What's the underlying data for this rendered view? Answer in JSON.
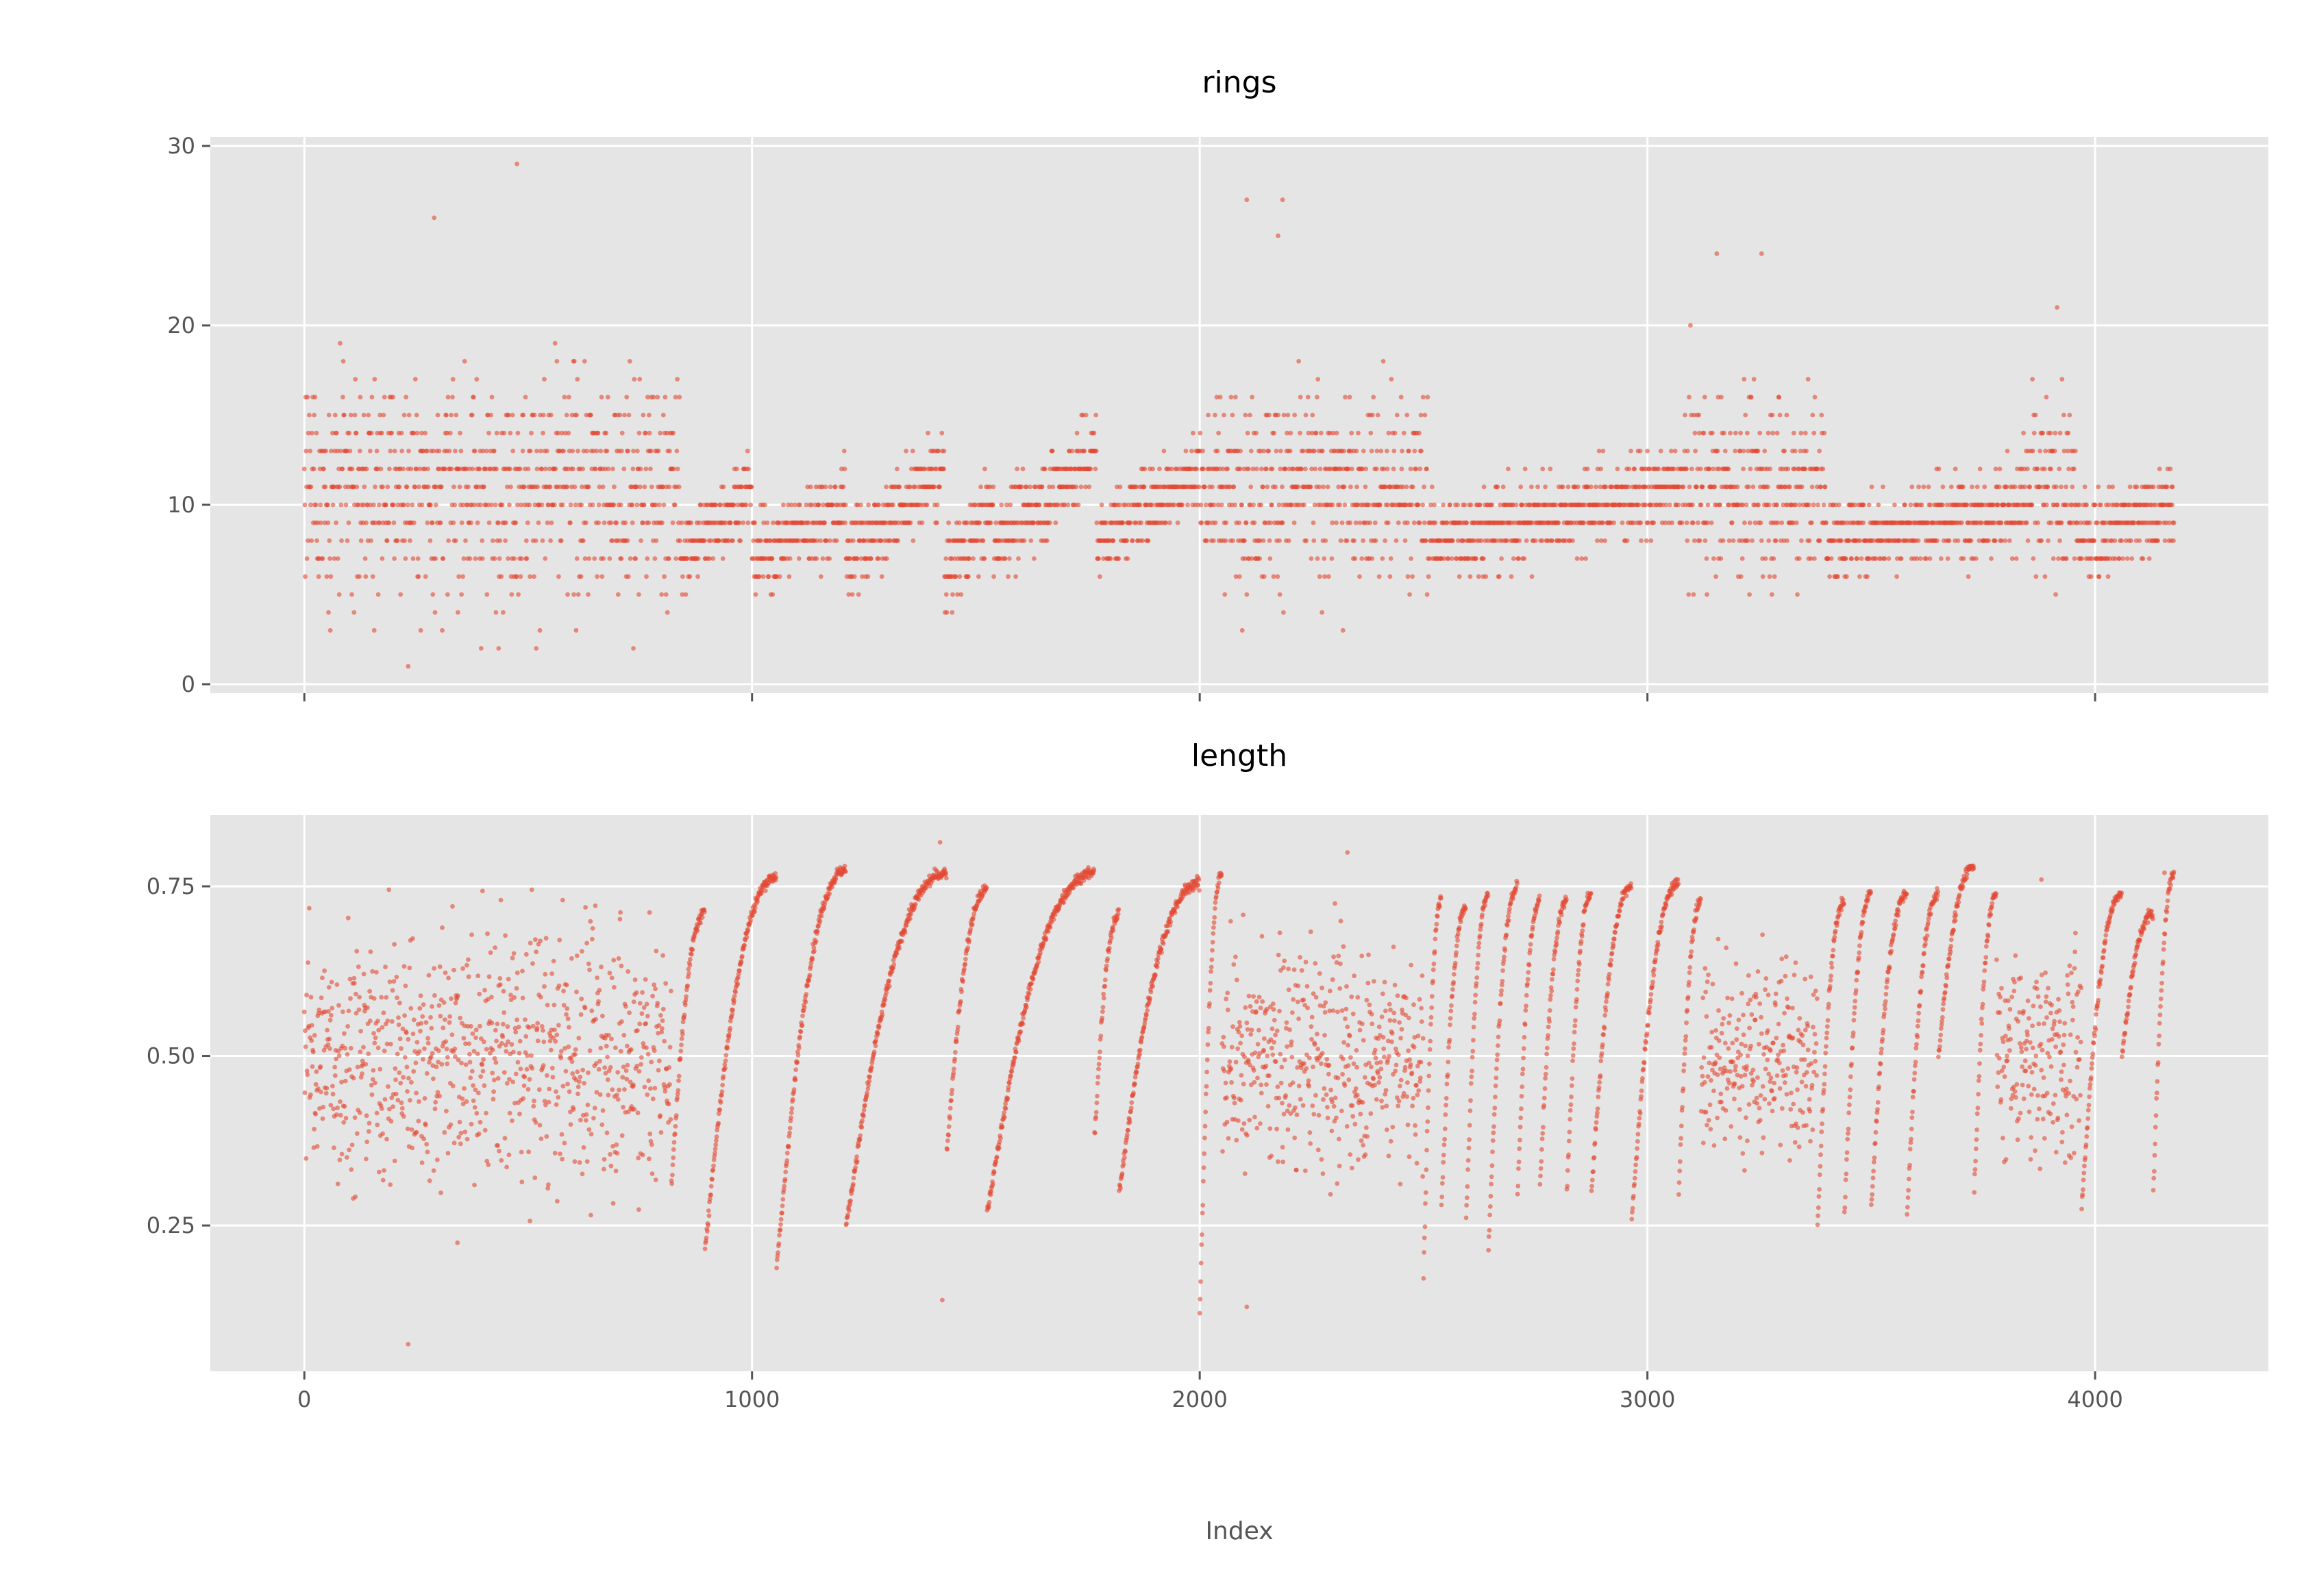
{
  "chart_data": [
    {
      "type": "scatter",
      "title": "rings",
      "xlabel": "",
      "ylabel": "",
      "xlim": [
        -210,
        4387
      ],
      "ylim": [
        -0.5,
        30.5
      ],
      "x_ticks": [
        0,
        1000,
        2000,
        3000,
        4000
      ],
      "x_tick_labels": [
        "",
        "",
        "",
        "",
        ""
      ],
      "y_ticks": [
        0,
        10,
        20,
        30
      ],
      "y_tick_labels": [
        "0",
        "10",
        "20",
        "30"
      ],
      "grid": true,
      "legend": "none",
      "marker_color": "#e24a33",
      "segments": [
        {
          "x": [
            0,
            840
          ],
          "mode": "spread",
          "center": [
            10,
            12
          ],
          "spread": 4.2,
          "min": 1,
          "max": 29
        },
        {
          "x": [
            840,
            1000
          ],
          "mode": "trend",
          "from": 7,
          "to": 11,
          "spread": 1.5
        },
        {
          "x": [
            1000,
            1210
          ],
          "mode": "trend",
          "from": 7,
          "to": 10,
          "spread": 1.6
        },
        {
          "x": [
            1210,
            1430
          ],
          "mode": "trend",
          "from": 7,
          "to": 12,
          "spread": 1.6
        },
        {
          "x": [
            1430,
            1540
          ],
          "mode": "trend",
          "from": 6,
          "to": 10,
          "spread": 1.5
        },
        {
          "x": [
            1540,
            1770
          ],
          "mode": "trend",
          "from": 8,
          "to": 13,
          "spread": 1.6
        },
        {
          "x": [
            1770,
            2000
          ],
          "mode": "trend",
          "from": 8,
          "to": 12,
          "spread": 1.6
        },
        {
          "x": [
            2000,
            2510
          ],
          "mode": "spread",
          "center": [
            10,
            12
          ],
          "spread": 3.5,
          "min": 3,
          "max": 27
        },
        {
          "x": [
            2510,
            3080
          ],
          "mode": "trend",
          "from": 8,
          "to": 11,
          "spread": 1.6
        },
        {
          "x": [
            3080,
            3400
          ],
          "mode": "spread",
          "center": [
            10,
            12
          ],
          "spread": 3.3,
          "min": 4,
          "max": 24
        },
        {
          "x": [
            3400,
            3840
          ],
          "mode": "trend",
          "from": 8,
          "to": 10,
          "spread": 1.6
        },
        {
          "x": [
            3840,
            3960
          ],
          "mode": "spread",
          "center": [
            10,
            11
          ],
          "spread": 3.2,
          "min": 3,
          "max": 21
        },
        {
          "x": [
            3960,
            4177
          ],
          "mode": "trend",
          "from": 8,
          "to": 10,
          "spread": 1.6
        }
      ],
      "notable_points": [
        {
          "x": 232,
          "y": 1
        },
        {
          "x": 290,
          "y": 26
        },
        {
          "x": 475,
          "y": 29
        },
        {
          "x": 2105,
          "y": 27
        },
        {
          "x": 2185,
          "y": 27
        },
        {
          "x": 2175,
          "y": 25
        },
        {
          "x": 3155,
          "y": 24
        },
        {
          "x": 3255,
          "y": 24
        },
        {
          "x": 3915,
          "y": 21
        },
        {
          "x": 735,
          "y": 2
        },
        {
          "x": 2320,
          "y": 3
        }
      ]
    },
    {
      "type": "scatter",
      "title": "length",
      "xlabel": "Index",
      "ylabel": "",
      "xlim": [
        -210,
        4387
      ],
      "ylim": [
        0.035,
        0.855
      ],
      "x_ticks": [
        0,
        1000,
        2000,
        3000,
        4000
      ],
      "x_tick_labels": [
        "0",
        "1000",
        "2000",
        "3000",
        "4000"
      ],
      "y_ticks": [
        0.25,
        0.5,
        0.75
      ],
      "y_tick_labels": [
        "0.25",
        "0.50",
        "0.75"
      ],
      "grid": true,
      "legend": "none",
      "marker_color": "#e24a33",
      "segments": [
        {
          "x": [
            0,
            820
          ],
          "mode": "spread",
          "center": [
            0.5,
            0.5
          ],
          "spread": 0.13,
          "min": 0.075,
          "max": 0.745
        },
        {
          "x": [
            820,
            895
          ],
          "mode": "ramp",
          "from": 0.31,
          "to": 0.71
        },
        {
          "x": [
            895,
            1055
          ],
          "mode": "ramp",
          "from": 0.22,
          "to": 0.765
        },
        {
          "x": [
            1055,
            1210
          ],
          "mode": "ramp",
          "from": 0.19,
          "to": 0.775
        },
        {
          "x": [
            1210,
            1435
          ],
          "mode": "ramp",
          "from": 0.25,
          "to": 0.77
        },
        {
          "x": [
            1435,
            1525
          ],
          "mode": "ramp",
          "from": 0.36,
          "to": 0.745
        },
        {
          "x": [
            1525,
            1765
          ],
          "mode": "ramp",
          "from": 0.27,
          "to": 0.77
        },
        {
          "x": [
            1765,
            1820
          ],
          "mode": "ramp",
          "from": 0.38,
          "to": 0.71
        },
        {
          "x": [
            1820,
            2000
          ],
          "mode": "ramp",
          "from": 0.3,
          "to": 0.755
        },
        {
          "x": [
            2000,
            2050
          ],
          "mode": "ramp",
          "from": 0.12,
          "to": 0.77
        },
        {
          "x": [
            2050,
            2500
          ],
          "mode": "spread",
          "center": [
            0.5,
            0.5
          ],
          "spread": 0.11,
          "min": 0.13,
          "max": 0.8
        },
        {
          "x": [
            2500,
            2540
          ],
          "mode": "ramp",
          "from": 0.18,
          "to": 0.73
        },
        {
          "x": [
            2540,
            2595
          ],
          "mode": "ramp",
          "from": 0.28,
          "to": 0.72
        },
        {
          "x": [
            2595,
            2645
          ],
          "mode": "ramp",
          "from": 0.26,
          "to": 0.74
        },
        {
          "x": [
            2645,
            2710
          ],
          "mode": "ramp",
          "from": 0.22,
          "to": 0.75
        },
        {
          "x": [
            2710,
            2760
          ],
          "mode": "ramp",
          "from": 0.3,
          "to": 0.73
        },
        {
          "x": [
            2760,
            2820
          ],
          "mode": "ramp",
          "from": 0.31,
          "to": 0.73
        },
        {
          "x": [
            2820,
            2875
          ],
          "mode": "ramp",
          "from": 0.3,
          "to": 0.74
        },
        {
          "x": [
            2875,
            2965
          ],
          "mode": "ramp",
          "from": 0.3,
          "to": 0.75
        },
        {
          "x": [
            2965,
            3070
          ],
          "mode": "ramp",
          "from": 0.26,
          "to": 0.755
        },
        {
          "x": [
            3070,
            3120
          ],
          "mode": "ramp",
          "from": 0.3,
          "to": 0.73
        },
        {
          "x": [
            3120,
            3380
          ],
          "mode": "spread",
          "center": [
            0.5,
            0.5
          ],
          "spread": 0.1,
          "min": 0.15,
          "max": 0.75
        },
        {
          "x": [
            3380,
            3440
          ],
          "mode": "ramp",
          "from": 0.25,
          "to": 0.73
        },
        {
          "x": [
            3440,
            3500
          ],
          "mode": "ramp",
          "from": 0.27,
          "to": 0.74
        },
        {
          "x": [
            3500,
            3580
          ],
          "mode": "ramp",
          "from": 0.28,
          "to": 0.74
        },
        {
          "x": [
            3580,
            3650
          ],
          "mode": "ramp",
          "from": 0.27,
          "to": 0.74
        },
        {
          "x": [
            3650,
            3730
          ],
          "mode": "ramp",
          "from": 0.5,
          "to": 0.78
        },
        {
          "x": [
            3730,
            3780
          ],
          "mode": "ramp",
          "from": 0.3,
          "to": 0.74
        },
        {
          "x": [
            3780,
            3970
          ],
          "mode": "spread",
          "center": [
            0.5,
            0.5
          ],
          "spread": 0.1,
          "min": 0.15,
          "max": 0.75
        },
        {
          "x": [
            3970,
            4060
          ],
          "mode": "ramp",
          "from": 0.28,
          "to": 0.74
        },
        {
          "x": [
            4060,
            4130
          ],
          "mode": "ramp",
          "from": 0.5,
          "to": 0.71
        },
        {
          "x": [
            4130,
            4177
          ],
          "mode": "ramp",
          "from": 0.3,
          "to": 0.77
        }
      ],
      "notable_points": [
        {
          "x": 232,
          "y": 0.075
        },
        {
          "x": 1420,
          "y": 0.815
        },
        {
          "x": 2330,
          "y": 0.8
        },
        {
          "x": 1425,
          "y": 0.14
        },
        {
          "x": 2105,
          "y": 0.13
        },
        {
          "x": 3880,
          "y": 0.76
        },
        {
          "x": 3720,
          "y": 0.78
        },
        {
          "x": 4155,
          "y": 0.77
        }
      ]
    }
  ]
}
